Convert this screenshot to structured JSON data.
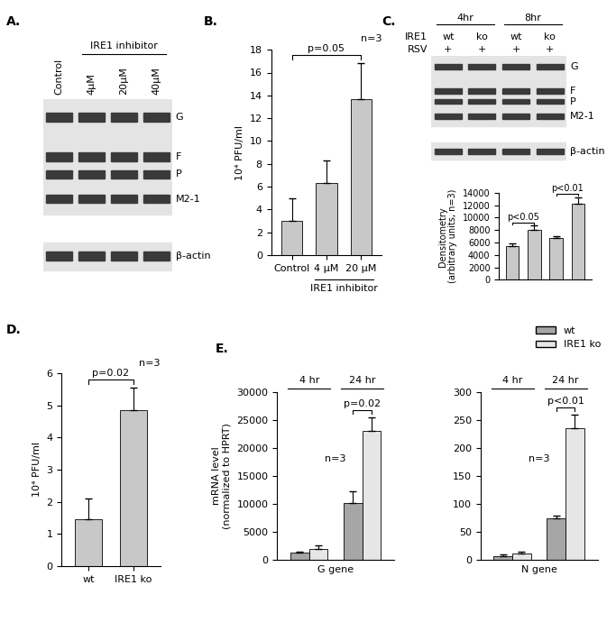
{
  "blots": [
    {
      "title": "A.",
      "lanes": [
        "Control",
        "4μM",
        "20μM",
        "40μM"
      ],
      "group_label": {
        "text": "IRE1 inhibitor",
        "lanes": [
          1,
          2,
          3
        ]
      },
      "bands": [
        "G",
        "F",
        "P",
        "M2-1"
      ],
      "loading_control": "β-actin"
    },
    {
      "title": "C.",
      "rows": [
        {
          "label": "IRE1",
          "values": [
            "wt",
            "ko",
            "wt",
            "ko"
          ]
        },
        {
          "label": "RSV",
          "values": [
            "+",
            "+",
            "+",
            "+"
          ]
        }
      ],
      "time_labels": [
        {
          "text": "4hr",
          "lanes": [
            0,
            1
          ]
        },
        {
          "text": "8hr",
          "lanes": [
            2,
            3
          ]
        }
      ],
      "bands": [
        "G",
        "F",
        "P",
        "M2-1"
      ],
      "loading_control": "β-actin"
    }
  ],
  "chart_data": [
    {
      "type": "bar",
      "title": "B.",
      "categories": [
        "Control",
        "4 μM",
        "20 μM"
      ],
      "group_label": {
        "text": "IRE1 inhibitor",
        "bars": [
          1,
          2
        ]
      },
      "values": [
        3.0,
        6.3,
        13.7
      ],
      "errors": [
        2.0,
        2.0,
        3.1
      ],
      "color": "#c8c8c8",
      "y_label": "10⁴ PFU/ml",
      "ylim": [
        0,
        18
      ],
      "yticks": [
        0,
        2,
        4,
        6,
        8,
        10,
        12,
        14,
        16,
        18
      ],
      "p_values": [
        {
          "text": "p=0.05",
          "bars": [
            0,
            2
          ]
        }
      ],
      "note": "n=3"
    },
    {
      "type": "bar",
      "categories": [
        null,
        null,
        null,
        null
      ],
      "values": [
        5400,
        8000,
        6700,
        12200
      ],
      "errors": [
        500,
        700,
        300,
        1100
      ],
      "color": "#c8c8c8",
      "y_label": "Densitometry\n(arbitrary units, n=3)",
      "ylim": [
        0,
        14000
      ],
      "yticks": [
        0,
        2000,
        4000,
        6000,
        8000,
        10000,
        12000,
        14000
      ],
      "tick_labels": "y",
      "p_values": [
        {
          "text": "p<0.05",
          "bars": [
            0,
            1
          ]
        },
        {
          "text": "p<0.01",
          "bars": [
            2,
            3
          ]
        }
      ]
    },
    {
      "type": "bar",
      "title": "D.",
      "categories": [
        "wt",
        "IRE1 ko"
      ],
      "values": [
        1.45,
        4.85
      ],
      "errors": [
        0.65,
        0.7
      ],
      "color": "#c8c8c8",
      "y_label": "10⁴ PFU/ml",
      "ylim": [
        0,
        6
      ],
      "yticks": [
        0,
        1,
        2,
        3,
        4,
        5,
        6
      ],
      "p_values": [
        {
          "text": "p=0.02",
          "bars": [
            0,
            1
          ]
        }
      ],
      "note": "n=3"
    },
    {
      "type": "bar",
      "title": "E.",
      "categories": [
        "4 hr",
        "24 hr"
      ],
      "series": [
        {
          "name": "wt",
          "color": "#a6a6a6",
          "values": [
            1300,
            10200
          ],
          "errors": [
            200,
            2000
          ]
        },
        {
          "name": "IRE1 ko",
          "color": "#e6e6e6",
          "values": [
            2000,
            23000
          ],
          "errors": [
            600,
            2500
          ]
        }
      ],
      "x_label": "G gene",
      "y_label": "mRNA level\n(normalized to HPRT)",
      "ylim": [
        0,
        30000
      ],
      "yticks": [
        0,
        5000,
        10000,
        15000,
        20000,
        25000,
        30000
      ],
      "p_values": [
        {
          "text": "p=0.02",
          "category": 1
        }
      ],
      "note": "n=3",
      "legend": "upper right"
    },
    {
      "type": "bar",
      "categories": [
        "4 hr",
        "24 hr"
      ],
      "series": [
        {
          "name": "wt",
          "color": "#a6a6a6",
          "values": [
            7,
            74
          ],
          "errors": [
            2,
            5
          ]
        },
        {
          "name": "IRE1 ko",
          "color": "#e6e6e6",
          "values": [
            12,
            235
          ],
          "errors": [
            2,
            25
          ]
        }
      ],
      "x_label": "N gene",
      "ylim": [
        0,
        300
      ],
      "yticks": [
        0,
        50,
        100,
        150,
        200,
        250,
        300
      ],
      "p_values": [
        {
          "text": "p<0.01",
          "category": 1
        }
      ],
      "note": "n=3"
    }
  ]
}
